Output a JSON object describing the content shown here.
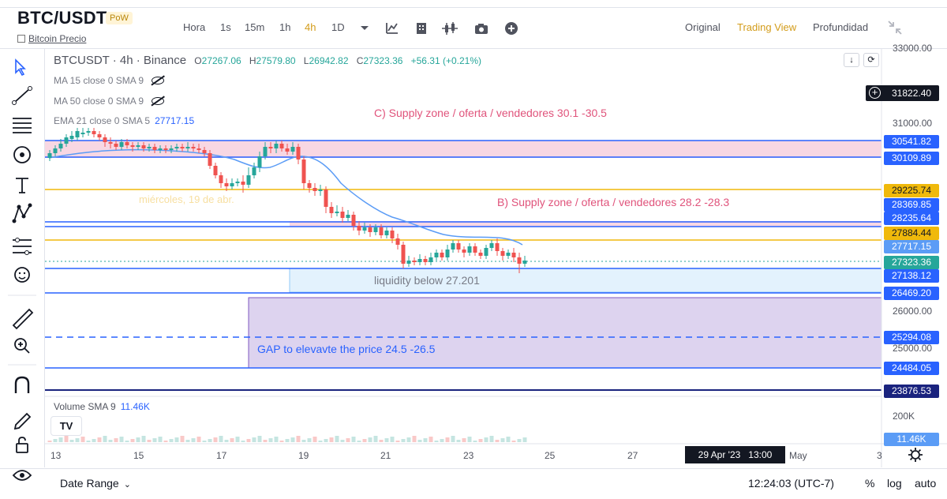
{
  "header": {
    "pair": "BTC/USDT",
    "badge": "PoW",
    "sublink": "Bitcoin Precio",
    "intervals": [
      "Hora",
      "1s",
      "15m",
      "1h",
      "4h",
      "1D"
    ],
    "active_interval": "4h",
    "views": [
      "Original",
      "Trading View",
      "Profundidad"
    ],
    "active_view": "Trading View"
  },
  "legend": {
    "symbol": "BTCUSDT · 4h · Binance",
    "o_label": "O",
    "o": "27267.06",
    "h_label": "H",
    "h": "27579.80",
    "l_label": "L",
    "l": "26942.82",
    "c_label": "C",
    "c": "27323.36",
    "change": "+56.31 (+0.21%)",
    "ma15": "MA 15 close 0 SMA 9",
    "ma50": "MA 50 close 0 SMA 9",
    "ema21": "EMA 21 close 0 SMA 5",
    "ema21_value": "27717.15"
  },
  "annotations": {
    "zone_c": "C) Supply zone / oferta / vendedores 30.1 -30.5",
    "zone_b": "B) Supply zone / oferta / vendedores 28.2 -28.3",
    "liquidity": "liquidity below 27.201",
    "gap": "GAP to elevavte the price 24.5 -26.5",
    "faded_date": "miércoles, 19 de abr."
  },
  "price_axis": {
    "ticks": [
      "33000.00",
      "31000.00",
      "26000.00",
      "25000.00"
    ],
    "crosshair": "31822.40",
    "labels": [
      {
        "text": "30541.82",
        "color": "#2962ff"
      },
      {
        "text": "30109.89",
        "color": "#2962ff"
      },
      {
        "text": "29225.74",
        "color": "#f0b90b"
      },
      {
        "text": "28369.85",
        "color": "#2962ff"
      },
      {
        "text": "28235.64",
        "color": "#2962ff"
      },
      {
        "text": "27884.44",
        "color": "#f0b90b"
      },
      {
        "text": "27717.15",
        "color": "#5b9cf6"
      },
      {
        "text": "27323.36",
        "color": "#26a69a"
      },
      {
        "text": "27138.12",
        "color": "#2962ff"
      },
      {
        "text": "26469.20",
        "color": "#2962ff"
      },
      {
        "text": "25294.08",
        "color": "#2962ff"
      },
      {
        "text": "24484.05",
        "color": "#2962ff"
      },
      {
        "text": "23876.53",
        "color": "#1a237e"
      }
    ]
  },
  "volume": {
    "label": "Volume SMA 9",
    "value": "11.46K",
    "axis_tick": "200K",
    "axis_value": "11.46K"
  },
  "time_axis": {
    "labels": [
      "13",
      "15",
      "17",
      "19",
      "21",
      "23",
      "25",
      "27",
      "May",
      "3"
    ],
    "crosshair": "29 Apr '23   13:00"
  },
  "footer": {
    "date_range": "Date Range",
    "clock": "12:24:03 (UTC-7)",
    "percent": "%",
    "log": "log",
    "auto": "auto"
  },
  "colors": {
    "up": "#26a69a",
    "down": "#ef5350",
    "blue": "#2962ff",
    "orange": "#f0b90b",
    "pink_zone": "#f8d7e3",
    "gap_zone": "#d1c4e9",
    "liquidity_zone": "#e3f2fd"
  }
}
